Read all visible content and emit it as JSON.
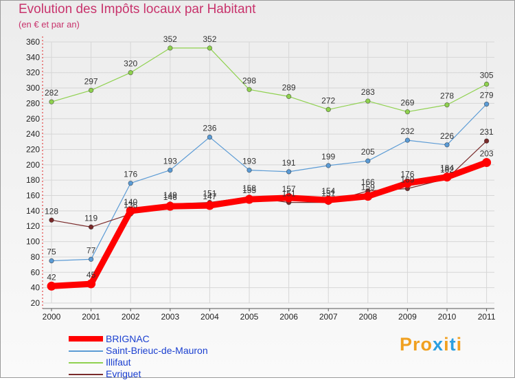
{
  "title": "Evolution des Impôts locaux par Habitant",
  "subtitle": "(en € et par an)",
  "brand": {
    "text": "Proxiti",
    "colors": [
      "#f0a020",
      "#f0a020",
      "#f0a020",
      "#2a9fe0",
      "#f0a020",
      "#2a9fe0",
      "#f0a020"
    ]
  },
  "chart_data": {
    "type": "line",
    "title": "Evolution des Impôts locaux par Habitant",
    "subtitle": "(en € et par an)",
    "categories": [
      "2000",
      "2001",
      "2002",
      "2003",
      "2004",
      "2005",
      "2006",
      "2007",
      "2008",
      "2009",
      "2010",
      "2011"
    ],
    "ylim": [
      20,
      360
    ],
    "yticks": [
      20,
      40,
      60,
      80,
      100,
      120,
      140,
      160,
      180,
      200,
      220,
      240,
      260,
      280,
      300,
      320,
      340,
      360
    ],
    "grid": true,
    "legend_position": "bottom-left",
    "series": [
      {
        "name": "BRIGNAC",
        "color": "#ff0000",
        "emphasis": "thick",
        "values": [
          42,
          45,
          140,
          146,
          147,
          155,
          157,
          154,
          159,
          176,
          184,
          203
        ],
        "labels": [
          "42",
          "45",
          "140",
          "146",
          "147",
          "155",
          "157",
          "154",
          "159",
          "176",
          "184",
          "203"
        ]
      },
      {
        "name": "Saint-Brieuc-de-Mauron",
        "color": "#5b9bd5",
        "emphasis": "thin",
        "values": [
          75,
          77,
          176,
          193,
          236,
          193,
          191,
          199,
          205,
          232,
          226,
          279
        ],
        "labels": [
          "75",
          "77",
          "176",
          "193",
          "236",
          "193",
          "191",
          "199",
          "205",
          "232",
          "226",
          "279"
        ]
      },
      {
        "name": "Illifaut",
        "color": "#8fd14f",
        "emphasis": "thin",
        "values": [
          282,
          297,
          320,
          352,
          352,
          298,
          289,
          272,
          283,
          269,
          278,
          305
        ],
        "labels": [
          "282",
          "297",
          "320",
          "352",
          "352",
          "298",
          "289",
          "272",
          "283",
          "269",
          "278",
          "305"
        ]
      },
      {
        "name": "Evriguet",
        "color": "#7a2a2a",
        "emphasis": "thin",
        "values": [
          128,
          119,
          136,
          149,
          151,
          158,
          151,
          151,
          166,
          169,
          182,
          231
        ],
        "labels": [
          "128",
          "119",
          "136",
          "149",
          "151",
          "158",
          "151",
          "151",
          "166",
          "169",
          "182",
          "231"
        ]
      }
    ]
  }
}
